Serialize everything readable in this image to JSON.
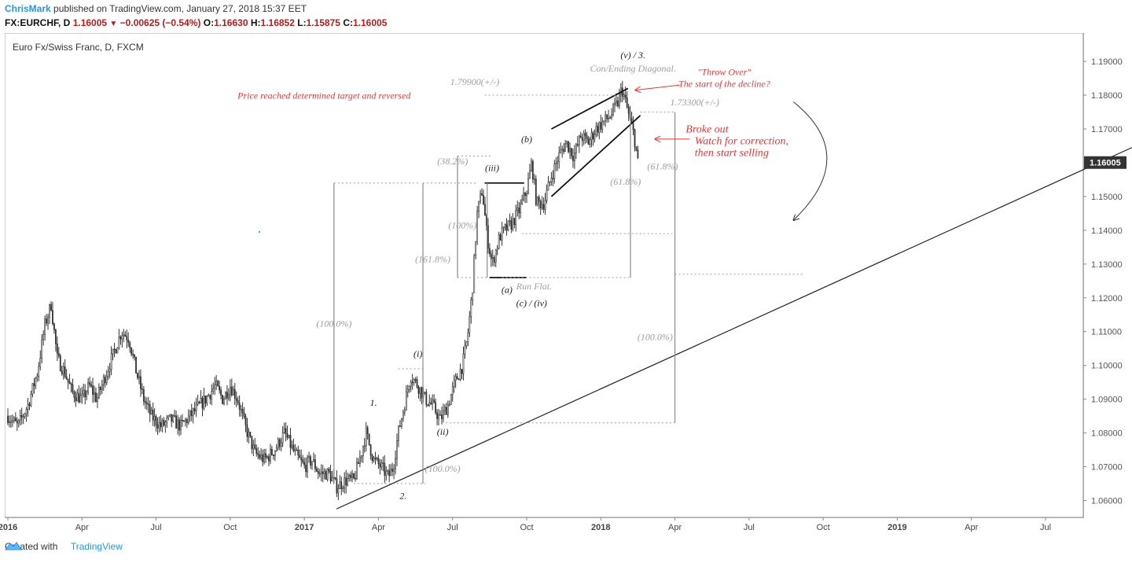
{
  "header": {
    "author": "ChrisMark",
    "published_text": "published on TradingView.com, January 27, 2018 15:37 EET",
    "symbol": "FX:EURCHF, D",
    "last": "1.16005",
    "change": "−0.00625 (−0.54%)",
    "o_label": "O:",
    "o_value": "1.16630",
    "h_label": "H:",
    "h_value": "1.16852",
    "l_label": "L:",
    "l_value": "1.15875",
    "c_label": "C:",
    "c_value": "1.16005"
  },
  "footer": {
    "created_with": "Created with",
    "brand": "TradingView"
  },
  "colors": {
    "candle": "#333333",
    "annotation_red": "#e53935",
    "fib_gray": "#9e9e9e",
    "price_badge": "#333333"
  },
  "chart_data": {
    "type": "candlestick",
    "title": "Euro Fx/Swiss Franc, D, FXCM",
    "ylim": [
      1.055,
      1.197
    ],
    "y_ticks": [
      "1.19000",
      "1.18000",
      "1.17000",
      "1.16000",
      "1.15000",
      "1.14000",
      "1.13000",
      "1.12000",
      "1.11000",
      "1.10000",
      "1.09000",
      "1.08000",
      "1.07000",
      "1.06000"
    ],
    "y_tick_values": [
      1.19,
      1.18,
      1.17,
      1.16,
      1.15,
      1.14,
      1.13,
      1.12,
      1.11,
      1.1,
      1.09,
      1.08,
      1.07,
      1.06
    ],
    "last_price_label": "1.16005",
    "last_price": 1.16005,
    "x_ticks": [
      {
        "label": "2016",
        "month": 0,
        "bold": true
      },
      {
        "label": "Apr",
        "month": 3
      },
      {
        "label": "Jul",
        "month": 6
      },
      {
        "label": "Oct",
        "month": 9
      },
      {
        "label": "2017",
        "month": 12,
        "bold": true
      },
      {
        "label": "Apr",
        "month": 15
      },
      {
        "label": "Jul",
        "month": 18
      },
      {
        "label": "Oct",
        "month": 21
      },
      {
        "label": "2018",
        "month": 24,
        "bold": true
      },
      {
        "label": "Apr",
        "month": 27
      },
      {
        "label": "Jul",
        "month": 30
      },
      {
        "label": "Oct",
        "month": 33
      },
      {
        "label": "2019",
        "month": 36,
        "bold": true
      },
      {
        "label": "Apr",
        "month": 39
      },
      {
        "label": "Jul",
        "month": 42
      }
    ],
    "price_path": [
      [
        0.0,
        1.085
      ],
      [
        0.4,
        1.082
      ],
      [
        0.8,
        1.088
      ],
      [
        1.2,
        1.098
      ],
      [
        1.5,
        1.112
      ],
      [
        1.75,
        1.118
      ],
      [
        2.0,
        1.102
      ],
      [
        2.3,
        1.098
      ],
      [
        2.6,
        1.092
      ],
      [
        3.0,
        1.09
      ],
      [
        3.3,
        1.094
      ],
      [
        3.6,
        1.09
      ],
      [
        4.0,
        1.098
      ],
      [
        4.3,
        1.104
      ],
      [
        4.6,
        1.11
      ],
      [
        4.9,
        1.108
      ],
      [
        5.2,
        1.098
      ],
      [
        5.5,
        1.09
      ],
      [
        5.8,
        1.085
      ],
      [
        6.2,
        1.082
      ],
      [
        6.6,
        1.084
      ],
      [
        7.0,
        1.082
      ],
      [
        7.5,
        1.086
      ],
      [
        8.0,
        1.09
      ],
      [
        8.4,
        1.094
      ],
      [
        8.7,
        1.09
      ],
      [
        9.0,
        1.094
      ],
      [
        9.3,
        1.09
      ],
      [
        9.6,
        1.082
      ],
      [
        10.0,
        1.074
      ],
      [
        10.4,
        1.072
      ],
      [
        10.8,
        1.075
      ],
      [
        11.2,
        1.08
      ],
      [
        11.6,
        1.074
      ],
      [
        12.0,
        1.07
      ],
      [
        12.3,
        1.072
      ],
      [
        12.6,
        1.068
      ],
      [
        13.0,
        1.068
      ],
      [
        13.3,
        1.064
      ],
      [
        13.7,
        1.066
      ],
      [
        14.0,
        1.066
      ],
      [
        14.3,
        1.074
      ],
      [
        14.5,
        1.08
      ],
      [
        14.8,
        1.072
      ],
      [
        15.1,
        1.07
      ],
      [
        15.4,
        1.067
      ],
      [
        15.6,
        1.07
      ],
      [
        15.8,
        1.08
      ],
      [
        16.1,
        1.09
      ],
      [
        16.3,
        1.097
      ],
      [
        16.6,
        1.094
      ],
      [
        16.9,
        1.09
      ],
      [
        17.2,
        1.088
      ],
      [
        17.5,
        1.084
      ],
      [
        17.8,
        1.088
      ],
      [
        18.1,
        1.095
      ],
      [
        18.4,
        1.1
      ],
      [
        18.6,
        1.108
      ],
      [
        18.8,
        1.122
      ],
      [
        19.0,
        1.145
      ],
      [
        19.2,
        1.152
      ],
      [
        19.4,
        1.138
      ],
      [
        19.6,
        1.13
      ],
      [
        19.9,
        1.138
      ],
      [
        20.1,
        1.14
      ],
      [
        20.4,
        1.142
      ],
      [
        20.7,
        1.146
      ],
      [
        21.0,
        1.152
      ],
      [
        21.2,
        1.16
      ],
      [
        21.4,
        1.148
      ],
      [
        21.7,
        1.148
      ],
      [
        22.0,
        1.156
      ],
      [
        22.3,
        1.162
      ],
      [
        22.6,
        1.166
      ],
      [
        22.9,
        1.162
      ],
      [
        23.2,
        1.168
      ],
      [
        23.5,
        1.166
      ],
      [
        23.8,
        1.17
      ],
      [
        24.1,
        1.172
      ],
      [
        24.4,
        1.174
      ],
      [
        24.7,
        1.178
      ],
      [
        24.85,
        1.182
      ],
      [
        25.0,
        1.178
      ],
      [
        25.2,
        1.172
      ],
      [
        25.35,
        1.168
      ],
      [
        25.5,
        1.16
      ]
    ],
    "trendline": {
      "from": [
        13.3,
        1.0575
      ],
      "to": [
        45.5,
        1.1645
      ]
    },
    "diagonal_upper": {
      "from": [
        22.0,
        1.17
      ],
      "to": [
        25.1,
        1.182
      ]
    },
    "diagonal_lower": {
      "from": [
        22.0,
        1.15
      ],
      "to": [
        25.6,
        1.174
      ]
    },
    "flat_segments": [
      {
        "from": [
          19.3,
          1.154
        ],
        "to": [
          20.9,
          1.154
        ]
      },
      {
        "from": [
          19.5,
          1.126
        ],
        "to": [
          21.0,
          1.126
        ]
      }
    ],
    "dotted_levels": [
      {
        "from": [
          13.2,
          1.154
        ],
        "to": [
          16.6,
          1.154
        ]
      },
      {
        "from": [
          16.8,
          1.154
        ],
        "to": [
          19.0,
          1.154
        ]
      },
      {
        "from": [
          18.2,
          1.162
        ],
        "to": [
          19.6,
          1.162
        ]
      },
      {
        "from": [
          18.2,
          1.126
        ],
        "to": [
          19.5,
          1.126
        ]
      },
      {
        "from": [
          20.0,
          1.126
        ],
        "to": [
          25.2,
          1.126
        ]
      },
      {
        "from": [
          14.0,
          1.065
        ],
        "to": [
          16.9,
          1.065
        ]
      },
      {
        "from": [
          15.8,
          1.099
        ],
        "to": [
          16.8,
          1.099
        ]
      },
      {
        "from": [
          17.4,
          1.083
        ],
        "to": [
          27.0,
          1.083
        ]
      },
      {
        "from": [
          20.8,
          1.139
        ],
        "to": [
          26.9,
          1.139
        ]
      },
      {
        "from": [
          27.0,
          1.127
        ],
        "to": [
          32.2,
          1.127
        ]
      },
      {
        "from": [
          25.6,
          1.175
        ],
        "to": [
          27.0,
          1.175
        ]
      },
      {
        "from": [
          19.3,
          1.18
        ],
        "to": [
          24.6,
          1.18
        ]
      }
    ],
    "vertical_measures": [
      {
        "x": 13.2,
        "from": 1.065,
        "to": 1.154
      },
      {
        "x": 16.8,
        "from": 1.065,
        "to": 1.154
      },
      {
        "x": 18.2,
        "from": 1.126,
        "to": 1.162
      },
      {
        "x": 19.4,
        "from": 1.126,
        "to": 1.154
      },
      {
        "x": 25.2,
        "from": 1.126,
        "to": 1.175
      },
      {
        "x": 27.0,
        "from": 1.083,
        "to": 1.175
      }
    ],
    "annotations": [
      {
        "text": "(v) / 3.",
        "x": 25.3,
        "y": 1.191,
        "style": "dark"
      },
      {
        "text": "Con/Ending Diagonal.",
        "x": 25.3,
        "y": 1.187,
        "style": "gray"
      },
      {
        "text": "1.79900(+/-)",
        "x": 18.9,
        "y": 1.183,
        "style": "gray"
      },
      {
        "text": "\"Throw Over\"",
        "x": 29.0,
        "y": 1.186,
        "style": "red"
      },
      {
        "text": "The start of the decline?",
        "x": 29.0,
        "y": 1.1825,
        "style": "red"
      },
      {
        "text": "Price reached determined target and reversed",
        "x": 12.8,
        "y": 1.179,
        "style": "red"
      },
      {
        "text": "1.73300(+/-)",
        "x": 27.8,
        "y": 1.177,
        "style": "gray"
      },
      {
        "text": "Broke out",
        "x": 28.3,
        "y": 1.169,
        "style": "red-big"
      },
      {
        "text": "Watch for correction,",
        "x": 29.7,
        "y": 1.1655,
        "style": "red-big"
      },
      {
        "text": "then start selling",
        "x": 29.3,
        "y": 1.162,
        "style": "red-big"
      },
      {
        "text": "(b)",
        "x": 21.0,
        "y": 1.166,
        "style": "dark"
      },
      {
        "text": "(38.2%)",
        "x": 18.0,
        "y": 1.1595,
        "style": "gray"
      },
      {
        "text": "(iii)",
        "x": 19.6,
        "y": 1.1575,
        "style": "dark"
      },
      {
        "text": "(61.8%)",
        "x": 26.5,
        "y": 1.158,
        "style": "gray"
      },
      {
        "text": "(61.8%)",
        "x": 25.0,
        "y": 1.1535,
        "style": "gray"
      },
      {
        "text": "(100%)",
        "x": 18.4,
        "y": 1.1405,
        "style": "gray"
      },
      {
        "text": "(161.8%)",
        "x": 17.2,
        "y": 1.1305,
        "style": "gray"
      },
      {
        "text": "(a)",
        "x": 20.2,
        "y": 1.1215,
        "style": "dark"
      },
      {
        "text": "Run Flat.",
        "x": 21.3,
        "y": 1.1225,
        "style": "gray"
      },
      {
        "text": "(c) / (iv)",
        "x": 21.2,
        "y": 1.1175,
        "style": "dark"
      },
      {
        "text": "(100.0%)",
        "x": 13.2,
        "y": 1.1115,
        "style": "gray"
      },
      {
        "text": "(100.0%)",
        "x": 26.2,
        "y": 1.1075,
        "style": "gray"
      },
      {
        "text": "(i)",
        "x": 16.6,
        "y": 1.1025,
        "style": "dark"
      },
      {
        "text": "1.",
        "x": 14.8,
        "y": 1.088,
        "style": "dark"
      },
      {
        "text": "(ii)",
        "x": 17.6,
        "y": 1.0795,
        "style": "dark"
      },
      {
        "text": "(100.0%)",
        "x": 17.6,
        "y": 1.0685,
        "style": "gray"
      },
      {
        "text": "2.",
        "x": 16.0,
        "y": 1.0605,
        "style": "dark"
      }
    ],
    "curved_arrow": {
      "from": [
        31.8,
        1.178
      ],
      "ctrl": [
        34.5,
        1.162
      ],
      "to": [
        31.8,
        1.143
      ]
    },
    "pointer_arrows": [
      {
        "from": [
          27.2,
          1.183
        ],
        "to": [
          25.4,
          1.1815
        ]
      },
      {
        "from": [
          27.6,
          1.167
        ],
        "to": [
          26.2,
          1.167
        ]
      }
    ]
  }
}
